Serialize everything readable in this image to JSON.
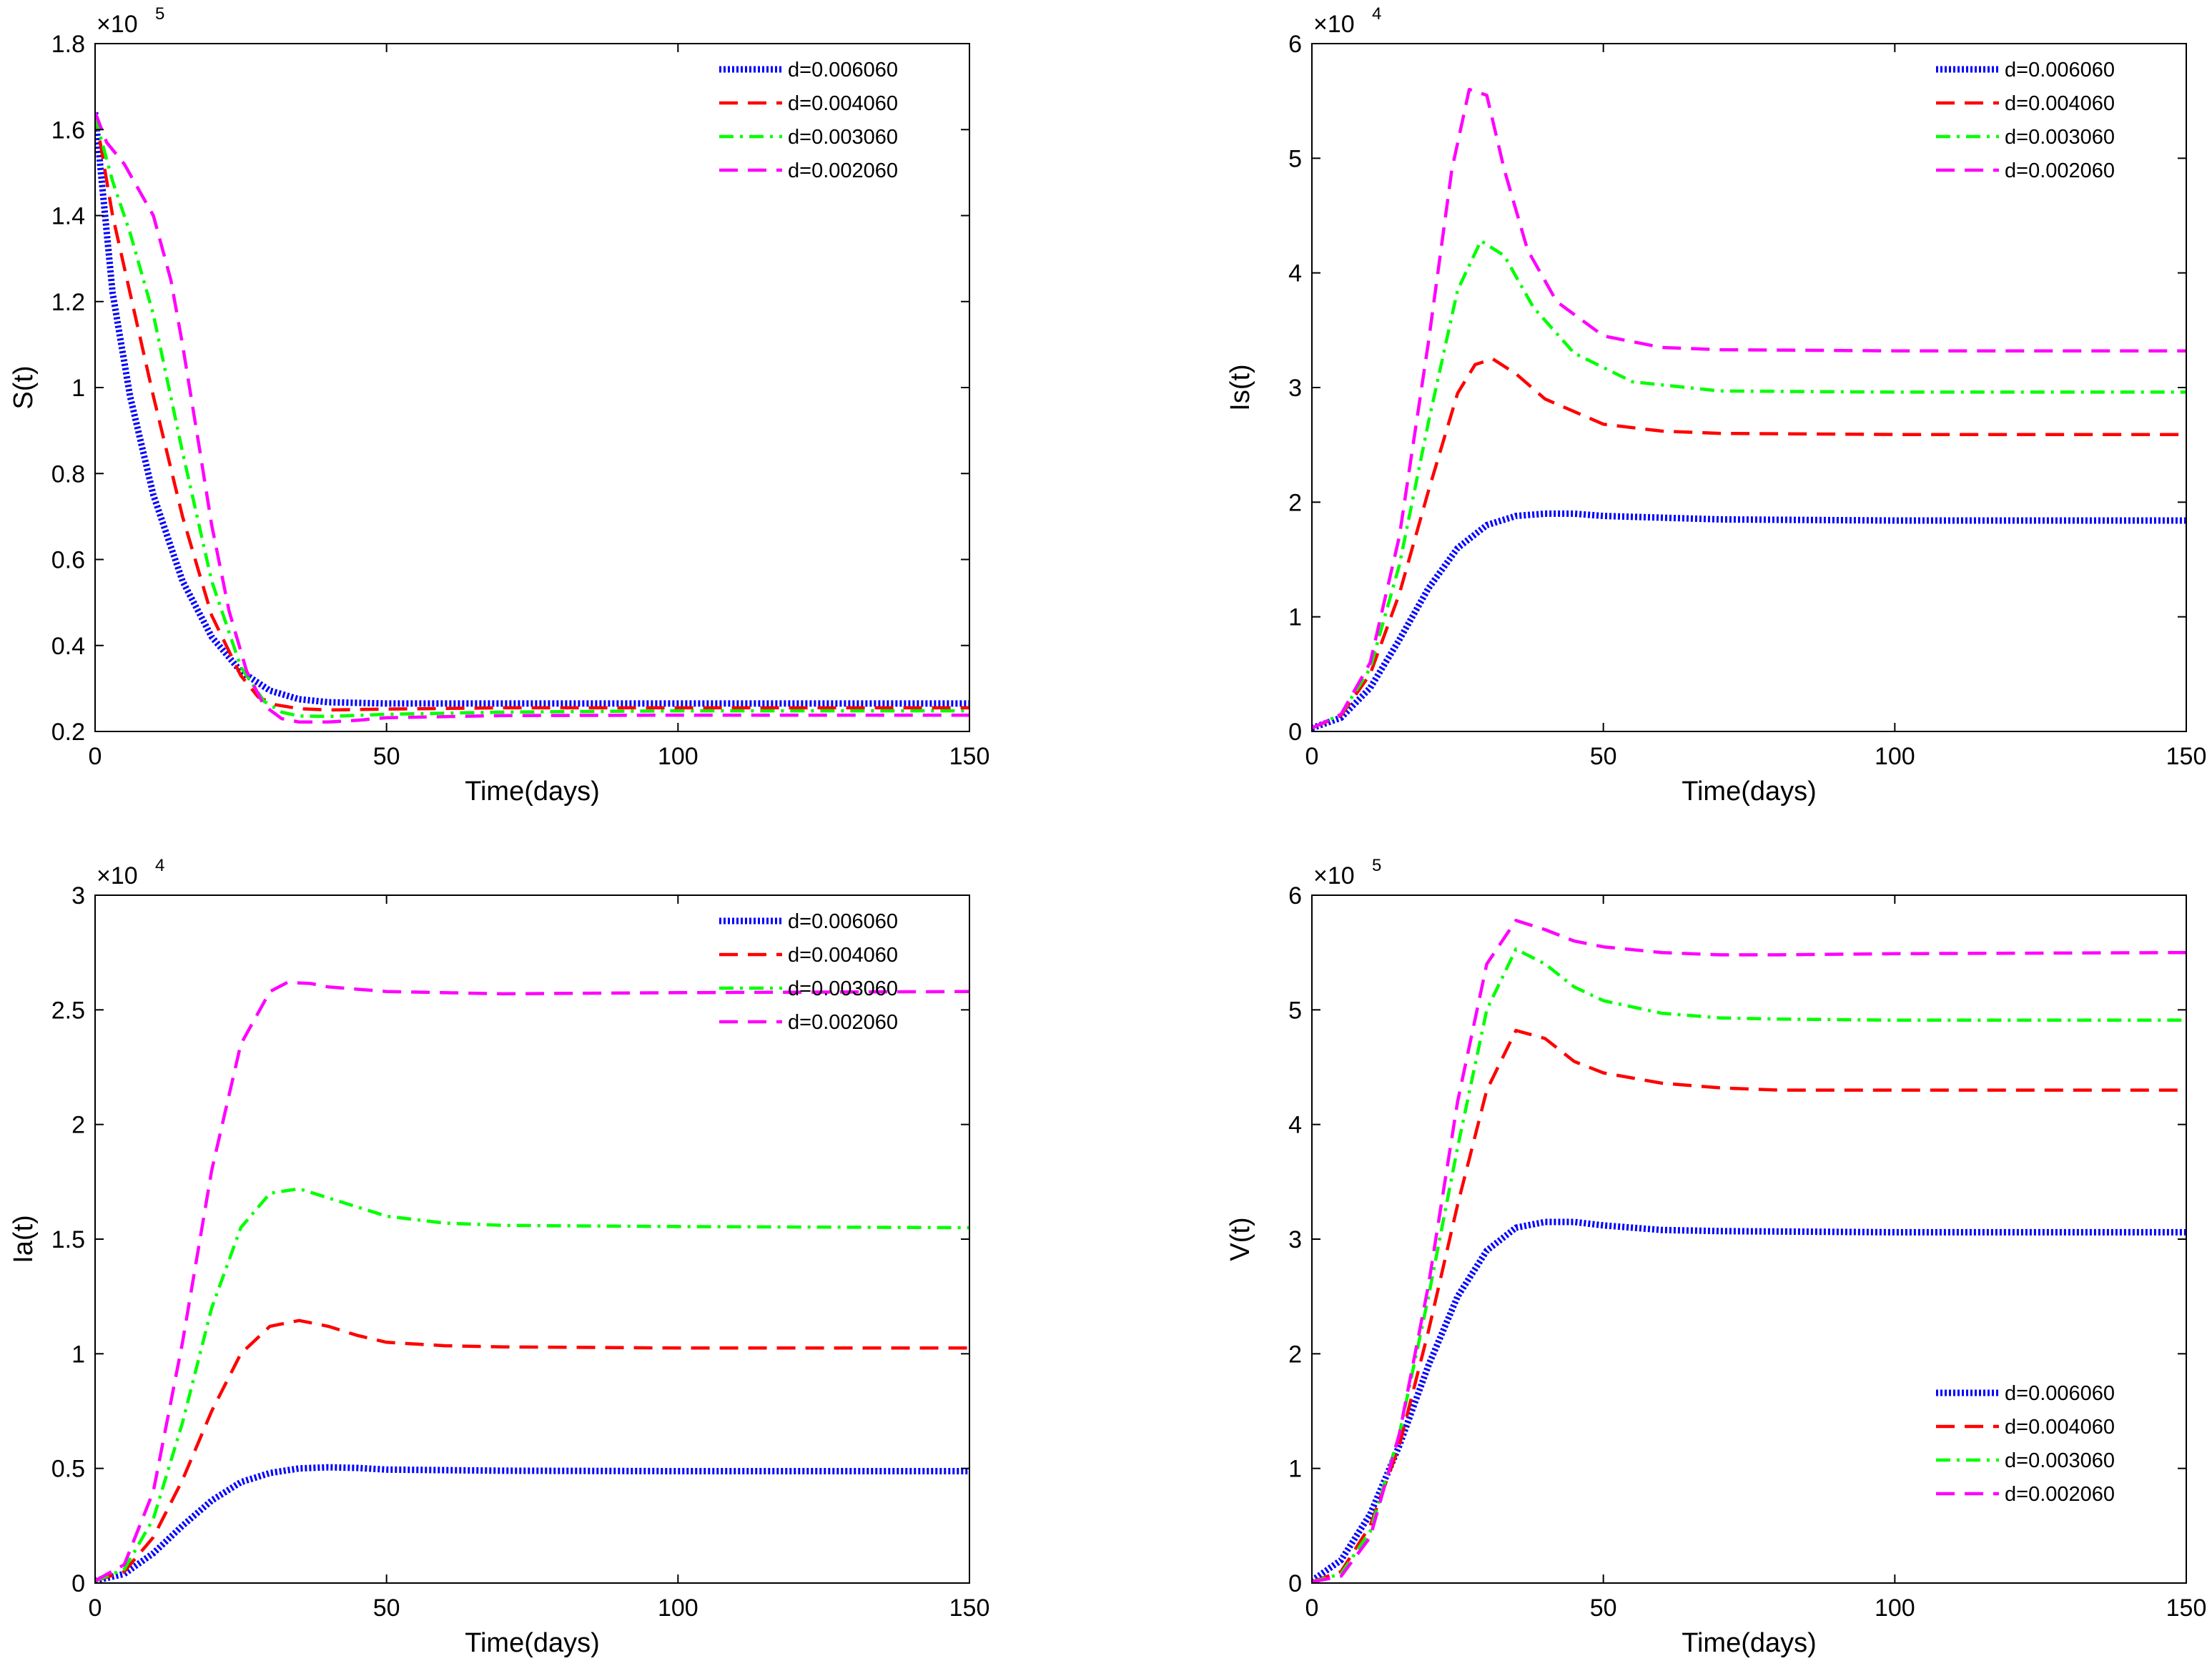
{
  "styles": {
    "d=0.006060": {
      "color": "#0000ff",
      "dash": "dotted"
    },
    "d=0.004060": {
      "color": "#ff0000",
      "dash": "dashed"
    },
    "d=0.003060": {
      "color": "#00ff00",
      "dash": "dashdot"
    },
    "d=0.002060": {
      "color": "#ff00ff",
      "dash": "dashed"
    }
  },
  "chart_data": [
    {
      "type": "line",
      "ylabel": "S(t)",
      "xlabel": "Time(days)",
      "xlim": [
        0,
        150
      ],
      "ylim": [
        0.2,
        1.8
      ],
      "xticks": [
        0,
        50,
        100,
        150
      ],
      "yticks": [
        0.2,
        0.4,
        0.6,
        0.8,
        1,
        1.2,
        1.4,
        1.6,
        1.8
      ],
      "ytick_labels": [
        "0.2",
        "0.4",
        "0.6",
        "0.8",
        "1",
        "1.2",
        "1.4",
        "1.6",
        "1.8"
      ],
      "scale_base": "×10",
      "scale_exp": "5",
      "legend_position": "top-right",
      "series": [
        {
          "name": "d=0.006060",
          "x": [
            0,
            3,
            6,
            10,
            15,
            20,
            25,
            30,
            35,
            40,
            50,
            70,
            100,
            150
          ],
          "y": [
            1.64,
            1.22,
            0.98,
            0.75,
            0.55,
            0.42,
            0.34,
            0.295,
            0.275,
            0.268,
            0.265,
            0.265,
            0.265,
            0.265
          ]
        },
        {
          "name": "d=0.004060",
          "x": [
            0,
            3,
            6,
            10,
            15,
            20,
            25,
            28,
            31,
            35,
            40,
            50,
            70,
            100,
            150
          ],
          "y": [
            1.64,
            1.4,
            1.22,
            0.98,
            0.7,
            0.47,
            0.33,
            0.28,
            0.262,
            0.253,
            0.25,
            0.252,
            0.255,
            0.255,
            0.255
          ]
        },
        {
          "name": "d=0.003060",
          "x": [
            0,
            3,
            6,
            10,
            15,
            20,
            25,
            29,
            32,
            35,
            40,
            50,
            70,
            100,
            150
          ],
          "y": [
            1.63,
            1.48,
            1.36,
            1.17,
            0.85,
            0.55,
            0.35,
            0.27,
            0.245,
            0.236,
            0.235,
            0.24,
            0.245,
            0.248,
            0.248
          ]
        },
        {
          "name": "d=0.002060",
          "x": [
            0,
            2,
            5,
            10,
            13,
            15,
            18,
            20,
            23,
            26,
            29,
            32,
            35,
            40,
            45,
            50,
            70,
            100,
            150
          ],
          "y": [
            1.64,
            1.57,
            1.52,
            1.4,
            1.25,
            1.1,
            0.85,
            0.68,
            0.48,
            0.34,
            0.26,
            0.23,
            0.222,
            0.222,
            0.226,
            0.232,
            0.237,
            0.238,
            0.238
          ]
        }
      ]
    },
    {
      "type": "line",
      "ylabel": "Is(t)",
      "xlabel": "Time(days)",
      "xlim": [
        0,
        150
      ],
      "ylim": [
        0,
        6
      ],
      "xticks": [
        0,
        50,
        100,
        150
      ],
      "yticks": [
        0,
        1,
        2,
        3,
        4,
        5,
        6
      ],
      "ytick_labels": [
        "0",
        "1",
        "2",
        "3",
        "4",
        "5",
        "6"
      ],
      "scale_base": "×10",
      "scale_exp": "4",
      "legend_position": "top-right",
      "series": [
        {
          "name": "d=0.006060",
          "x": [
            0,
            5,
            10,
            15,
            20,
            25,
            30,
            35,
            40,
            45,
            50,
            70,
            100,
            150
          ],
          "y": [
            0.03,
            0.12,
            0.38,
            0.8,
            1.25,
            1.6,
            1.8,
            1.88,
            1.9,
            1.9,
            1.88,
            1.85,
            1.84,
            1.84
          ]
        },
        {
          "name": "d=0.004060",
          "x": [
            0,
            5,
            10,
            15,
            20,
            25,
            28,
            31,
            35,
            40,
            50,
            60,
            70,
            100,
            150
          ],
          "y": [
            0.03,
            0.14,
            0.5,
            1.2,
            2.1,
            2.95,
            3.2,
            3.25,
            3.12,
            2.9,
            2.68,
            2.62,
            2.6,
            2.59,
            2.59
          ]
        },
        {
          "name": "d=0.003060",
          "x": [
            0,
            5,
            10,
            15,
            20,
            25,
            29,
            33,
            38,
            45,
            55,
            70,
            100,
            150
          ],
          "y": [
            0.03,
            0.15,
            0.55,
            1.45,
            2.7,
            3.85,
            4.28,
            4.15,
            3.7,
            3.3,
            3.05,
            2.97,
            2.96,
            2.96
          ]
        },
        {
          "name": "d=0.002060",
          "x": [
            0,
            5,
            10,
            15,
            20,
            24,
            27,
            30,
            33,
            37,
            42,
            50,
            60,
            70,
            100,
            150
          ],
          "y": [
            0.03,
            0.15,
            0.6,
            1.7,
            3.4,
            4.9,
            5.6,
            5.55,
            4.9,
            4.2,
            3.75,
            3.45,
            3.35,
            3.33,
            3.32,
            3.32
          ]
        }
      ]
    },
    {
      "type": "line",
      "ylabel": "Ia(t)",
      "xlabel": "Time(days)",
      "xlim": [
        0,
        150
      ],
      "ylim": [
        0,
        3
      ],
      "xticks": [
        0,
        50,
        100,
        150
      ],
      "yticks": [
        0,
        0.5,
        1,
        1.5,
        2,
        2.5,
        3
      ],
      "ytick_labels": [
        "0",
        "0.5",
        "1",
        "1.5",
        "2",
        "2.5",
        "3"
      ],
      "scale_base": "×10",
      "scale_exp": "4",
      "legend_position": "top-right",
      "series": [
        {
          "name": "d=0.006060",
          "x": [
            0,
            5,
            10,
            15,
            20,
            25,
            30,
            35,
            40,
            45,
            50,
            70,
            100,
            150
          ],
          "y": [
            0.01,
            0.04,
            0.13,
            0.25,
            0.36,
            0.44,
            0.48,
            0.5,
            0.505,
            0.502,
            0.495,
            0.49,
            0.488,
            0.488
          ]
        },
        {
          "name": "d=0.004060",
          "x": [
            0,
            5,
            10,
            15,
            20,
            25,
            30,
            35,
            40,
            45,
            50,
            60,
            70,
            100,
            150
          ],
          "y": [
            0.01,
            0.05,
            0.2,
            0.45,
            0.75,
            1.0,
            1.12,
            1.145,
            1.12,
            1.08,
            1.05,
            1.035,
            1.03,
            1.025,
            1.025
          ]
        },
        {
          "name": "d=0.003060",
          "x": [
            0,
            5,
            10,
            15,
            20,
            25,
            30,
            35,
            40,
            45,
            50,
            60,
            70,
            100,
            150
          ],
          "y": [
            0.01,
            0.06,
            0.28,
            0.7,
            1.2,
            1.55,
            1.7,
            1.72,
            1.68,
            1.64,
            1.6,
            1.57,
            1.56,
            1.555,
            1.55
          ]
        },
        {
          "name": "d=0.002060",
          "x": [
            0,
            5,
            10,
            15,
            20,
            25,
            30,
            33,
            37,
            40,
            45,
            50,
            70,
            100,
            150
          ],
          "y": [
            0.01,
            0.08,
            0.4,
            1.05,
            1.8,
            2.35,
            2.58,
            2.62,
            2.615,
            2.6,
            2.59,
            2.58,
            2.57,
            2.575,
            2.58
          ]
        }
      ]
    },
    {
      "type": "line",
      "ylabel": "V(t)",
      "xlabel": "Time(days)",
      "xlim": [
        0,
        150
      ],
      "ylim": [
        0,
        6
      ],
      "xticks": [
        0,
        50,
        100,
        150
      ],
      "yticks": [
        0,
        1,
        2,
        3,
        4,
        5,
        6
      ],
      "ytick_labels": [
        "0",
        "1",
        "2",
        "3",
        "4",
        "5",
        "6"
      ],
      "scale_base": "×10",
      "scale_exp": "5",
      "legend_position": "bottom-right",
      "series": [
        {
          "name": "d=0.006060",
          "x": [
            0,
            5,
            10,
            15,
            20,
            25,
            30,
            35,
            40,
            45,
            50,
            60,
            70,
            100,
            150
          ],
          "y": [
            0.02,
            0.2,
            0.6,
            1.2,
            1.9,
            2.5,
            2.9,
            3.1,
            3.15,
            3.15,
            3.12,
            3.08,
            3.07,
            3.06,
            3.06
          ]
        },
        {
          "name": "d=0.004060",
          "x": [
            0,
            5,
            10,
            15,
            20,
            25,
            30,
            35,
            40,
            45,
            50,
            60,
            70,
            80,
            100,
            150
          ],
          "y": [
            0.01,
            0.1,
            0.5,
            1.2,
            2.2,
            3.3,
            4.3,
            4.82,
            4.75,
            4.55,
            4.45,
            4.36,
            4.32,
            4.3,
            4.3,
            4.3
          ]
        },
        {
          "name": "d=0.003060",
          "x": [
            0,
            5,
            10,
            15,
            20,
            25,
            30,
            35,
            40,
            45,
            50,
            60,
            70,
            80,
            100,
            150
          ],
          "y": [
            0.01,
            0.08,
            0.45,
            1.3,
            2.5,
            3.8,
            5.0,
            5.53,
            5.4,
            5.2,
            5.08,
            4.97,
            4.93,
            4.92,
            4.91,
            4.91
          ]
        },
        {
          "name": "d=0.002060",
          "x": [
            0,
            5,
            10,
            15,
            20,
            25,
            30,
            35,
            40,
            45,
            50,
            60,
            70,
            80,
            100,
            150
          ],
          "y": [
            0.01,
            0.06,
            0.4,
            1.3,
            2.6,
            4.2,
            5.4,
            5.78,
            5.7,
            5.6,
            5.55,
            5.5,
            5.48,
            5.48,
            5.49,
            5.5
          ]
        }
      ]
    }
  ]
}
